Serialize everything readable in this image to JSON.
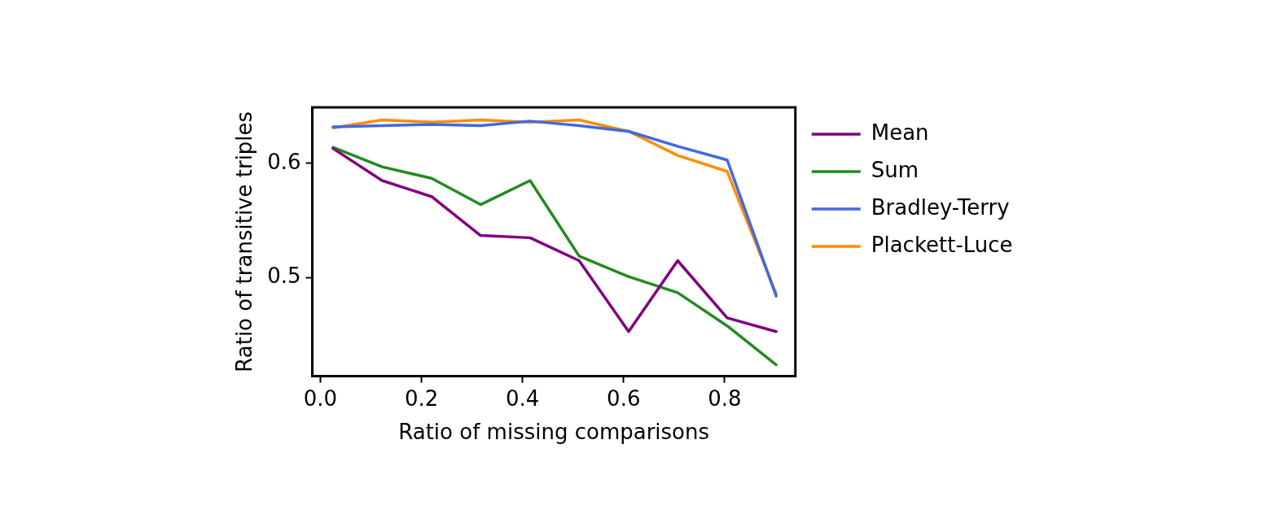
{
  "chart_data": {
    "type": "line",
    "xlabel": "Ratio of missing comparisons",
    "ylabel": "Ratio of transitive triples",
    "x": [
      0.025,
      0.122,
      0.22,
      0.317,
      0.415,
      0.512,
      0.61,
      0.707,
      0.805,
      0.902
    ],
    "series": [
      {
        "name": "Mean",
        "color": "#800080",
        "values": [
          0.613,
          0.585,
          0.571,
          0.537,
          0.535,
          0.515,
          0.453,
          0.515,
          0.465,
          0.453
        ]
      },
      {
        "name": "Sum",
        "color": "#228b22",
        "values": [
          0.614,
          0.597,
          0.587,
          0.564,
          0.585,
          0.519,
          0.501,
          0.487,
          0.458,
          0.424
        ]
      },
      {
        "name": "Bradley-Terry",
        "color": "#4169e1",
        "values": [
          0.632,
          0.633,
          0.634,
          0.633,
          0.637,
          0.633,
          0.628,
          0.615,
          0.603,
          0.484
        ]
      },
      {
        "name": "Plackett-Luce",
        "color": "#ff8c00",
        "values": [
          0.631,
          0.638,
          0.636,
          0.638,
          0.636,
          0.638,
          0.628,
          0.607,
          0.593,
          0.486
        ]
      }
    ],
    "xlim": [
      -0.016,
      0.94
    ],
    "xticks": [
      {
        "value": 0,
        "label": "0.0"
      },
      0.2,
      0.4,
      0.6,
      0.8
    ],
    "ylim": [
      0.414,
      0.649
    ],
    "yticks": [
      0.5,
      0.6
    ],
    "grid": false,
    "legend": "right",
    "marker": "none",
    "line_style": "solid"
  }
}
